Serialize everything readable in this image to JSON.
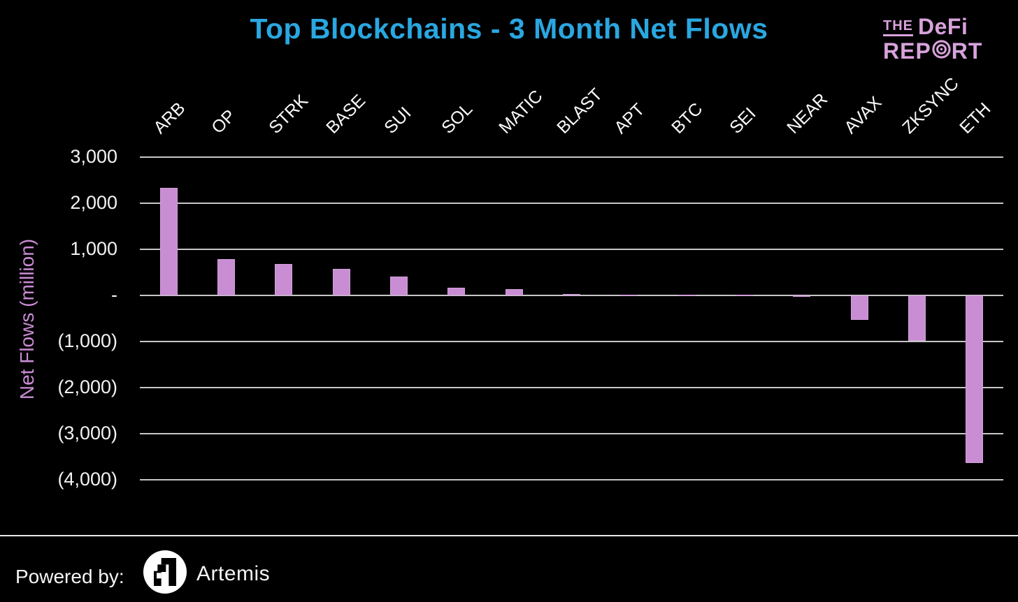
{
  "title": "Top Blockchains - 3 Month Net Flows",
  "brand": {
    "the": "THE",
    "defi": "DeFi",
    "rep": "REP",
    "rt": "RT"
  },
  "y_axis": {
    "title": "Net Flows (million)",
    "tick_values": [
      3000,
      2000,
      1000,
      0,
      -1000,
      -2000,
      -3000,
      -4000
    ],
    "tick_labels": [
      "3,000",
      "2,000",
      "1,000",
      "-",
      "(1,000)",
      "(2,000)",
      "(3,000)",
      "(4,000)"
    ]
  },
  "footer": {
    "powered_by": "Powered by:",
    "artemis": "Artemis"
  },
  "colors": {
    "background": "#000000",
    "title": "#2AA7E0",
    "bar": "#C98DD3",
    "grid": "#C6C6C6",
    "tick_text": "#F2F2F2",
    "category_text": "#FAFAFA",
    "axis_title": "#C98BD4",
    "brand": "#D8A2DC",
    "footer_text": "#F5F5F5",
    "footer_line": "#E9E9E9"
  },
  "chart_data": {
    "type": "bar",
    "title": "Top Blockchains - 3 Month Net Flows",
    "categories": [
      "ARB",
      "OP",
      "STRK",
      "BASE",
      "SUI",
      "SOL",
      "MATIC",
      "BLAST",
      "APT",
      "BTC",
      "SEI",
      "NEAR",
      "AVAX",
      "ZKSYNC",
      "ETH"
    ],
    "values": [
      2340,
      790,
      680,
      575,
      410,
      160,
      130,
      25,
      20,
      20,
      15,
      5,
      -525,
      -990,
      -3630
    ],
    "xlabel": "",
    "ylabel": "Net Flows (million)",
    "ylim": [
      -4000,
      3000
    ],
    "grid": "horizontal-only",
    "legend": "none",
    "bar_color": "#C98DD3",
    "background": "#000000"
  }
}
